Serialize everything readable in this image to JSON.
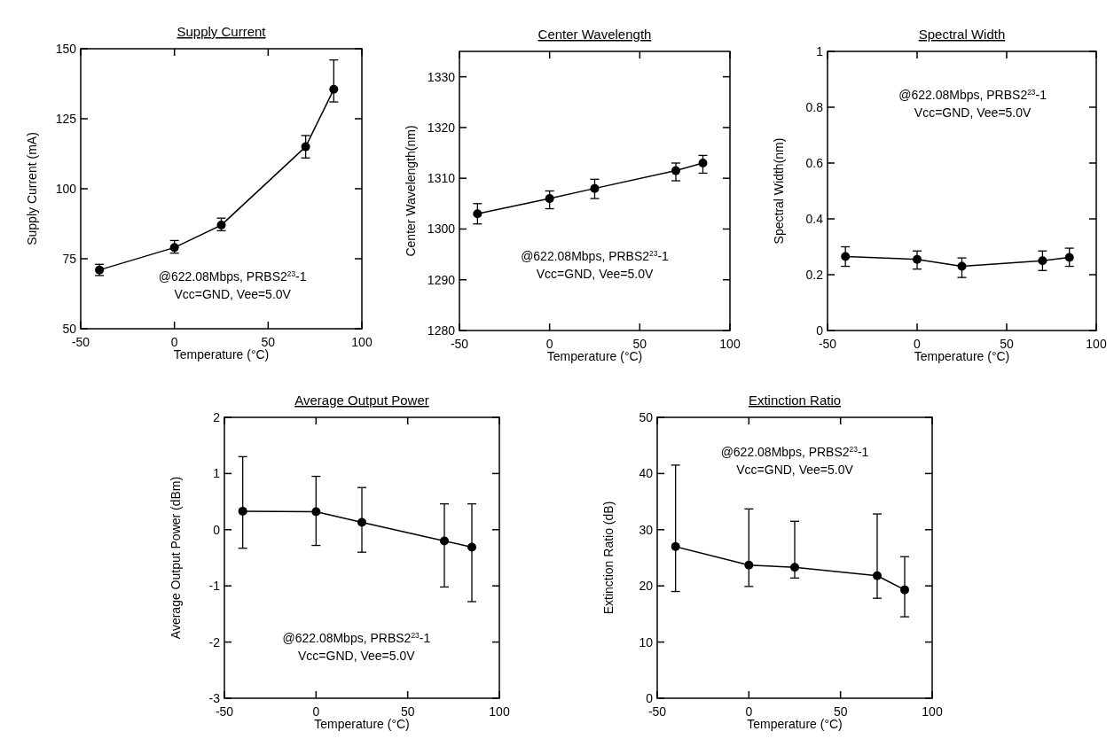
{
  "chart_data": [
    {
      "type": "line",
      "title": "Supply Current",
      "xlabel": "Temperature (°C)",
      "ylabel": "Supply Current (mA)",
      "x": [
        -40,
        0,
        25,
        70,
        85
      ],
      "series": [
        {
          "color": "#000000",
          "values": [
            71,
            79,
            87,
            115,
            135.5
          ],
          "errors": [
            [
              69,
              73
            ],
            [
              77,
              81.5
            ],
            [
              85,
              89.5
            ],
            [
              111,
              119
            ],
            [
              131,
              146
            ]
          ]
        }
      ],
      "xlim": [
        -50,
        100
      ],
      "xticks": [
        -50,
        0,
        50,
        100
      ],
      "ylim": [
        50,
        150
      ],
      "yticks": [
        50,
        75,
        100,
        125,
        150
      ],
      "marker": "circle",
      "annotations": [
        "@622.08Mbps, PRBS2$^{23}$-1",
        "Vcc=GND, Vee=5.0V"
      ]
    },
    {
      "type": "line",
      "title": "Center Wavelength",
      "xlabel": "Temperature (°C)",
      "ylabel": "Center Wavelength(nm)",
      "x": [
        -40,
        0,
        25,
        70,
        85
      ],
      "series": [
        {
          "color": "#000000",
          "values": [
            1303,
            1306,
            1308,
            1311.5,
            1313
          ],
          "errors": [
            [
              1301,
              1305
            ],
            [
              1304,
              1307.5
            ],
            [
              1306,
              1309.8
            ],
            [
              1309.5,
              1313
            ],
            [
              1311,
              1314.5
            ]
          ]
        }
      ],
      "xlim": [
        -50,
        100
      ],
      "xticks": [
        -50,
        0,
        50,
        100
      ],
      "ylim": [
        1280,
        1335
      ],
      "yticks": [
        1280,
        1290,
        1300,
        1310,
        1320,
        1330
      ],
      "marker": "circle",
      "annotations": [
        "@622.08Mbps, PRBS2$^{23}$-1",
        "Vcc=GND, Vee=5.0V"
      ]
    },
    {
      "type": "line",
      "title": "Spectral Width",
      "xlabel": "Temperature (°C)",
      "ylabel": "Spectral Width(nm)",
      "x": [
        -40,
        0,
        25,
        70,
        85
      ],
      "series": [
        {
          "color": "#000000",
          "values": [
            0.265,
            0.255,
            0.23,
            0.25,
            0.262
          ],
          "errors": [
            [
              0.23,
              0.3
            ],
            [
              0.22,
              0.285
            ],
            [
              0.19,
              0.26
            ],
            [
              0.215,
              0.285
            ],
            [
              0.23,
              0.295
            ]
          ]
        }
      ],
      "xlim": [
        -50,
        100
      ],
      "xticks": [
        -50,
        0,
        50,
        100
      ],
      "ylim": [
        0,
        1
      ],
      "yticks": [
        0,
        0.2,
        0.4,
        0.6,
        0.8,
        1
      ],
      "marker": "circle",
      "annotations": [
        "@622.08Mbps, PRBS2$^{23}$-1",
        "Vcc=GND, Vee=5.0V"
      ]
    },
    {
      "type": "line",
      "title": "Average Output Power",
      "xlabel": "Temperature (°C)",
      "ylabel": "Average Output Power (dBm)",
      "x": [
        -40,
        0,
        25,
        70,
        85
      ],
      "series": [
        {
          "color": "#000000",
          "values": [
            0.33,
            0.32,
            0.13,
            -0.2,
            -0.31
          ],
          "errors": [
            [
              -0.33,
              1.3
            ],
            [
              -0.28,
              0.95
            ],
            [
              -0.4,
              0.75
            ],
            [
              -1.02,
              0.46
            ],
            [
              -1.28,
              0.46
            ]
          ]
        }
      ],
      "xlim": [
        -50,
        100
      ],
      "xticks": [
        -50,
        0,
        50,
        100
      ],
      "ylim": [
        -3,
        2
      ],
      "yticks": [
        -3,
        -2,
        -1,
        0,
        1,
        2
      ],
      "marker": "circle",
      "annotations": [
        "@622.08Mbps, PRBS2$^{23}$-1",
        "Vcc=GND, Vee=5.0V"
      ]
    },
    {
      "type": "line",
      "title": "Extinction Ratio",
      "xlabel": "Temperature (°C)",
      "ylabel": "Extinction Ratio (dB)",
      "x": [
        -40,
        0,
        25,
        70,
        85
      ],
      "series": [
        {
          "color": "#000000",
          "values": [
            27,
            23.7,
            23.3,
            21.8,
            19.3
          ],
          "errors": [
            [
              19,
              41.5
            ],
            [
              19.9,
              33.7
            ],
            [
              21.4,
              31.5
            ],
            [
              17.8,
              32.8
            ],
            [
              14.5,
              25.2
            ]
          ]
        }
      ],
      "xlim": [
        -50,
        100
      ],
      "xticks": [
        -50,
        0,
        50,
        100
      ],
      "ylim": [
        0,
        50
      ],
      "yticks": [
        0,
        10,
        20,
        30,
        40,
        50
      ],
      "marker": "circle",
      "annotations": [
        "@622.08Mbps, PRBS2$^{23}$-1",
        "Vcc=GND, Vee=5.0V"
      ]
    }
  ]
}
